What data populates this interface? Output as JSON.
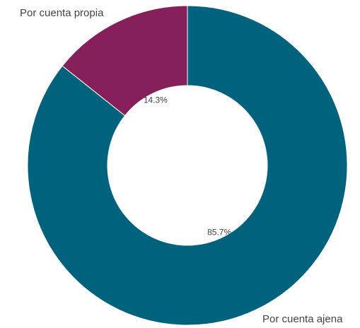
{
  "chart_data": {
    "type": "pie",
    "variant": "donut",
    "series": [
      {
        "name": "Por cuenta ajena",
        "value": 85.7,
        "percent_label": "85.7%",
        "color": "#00627d"
      },
      {
        "name": "Por cuenta propia",
        "value": 14.3,
        "percent_label": "14.3%",
        "color": "#85205a"
      }
    ],
    "legend": "none",
    "slice_border_color": "#ffffff"
  }
}
